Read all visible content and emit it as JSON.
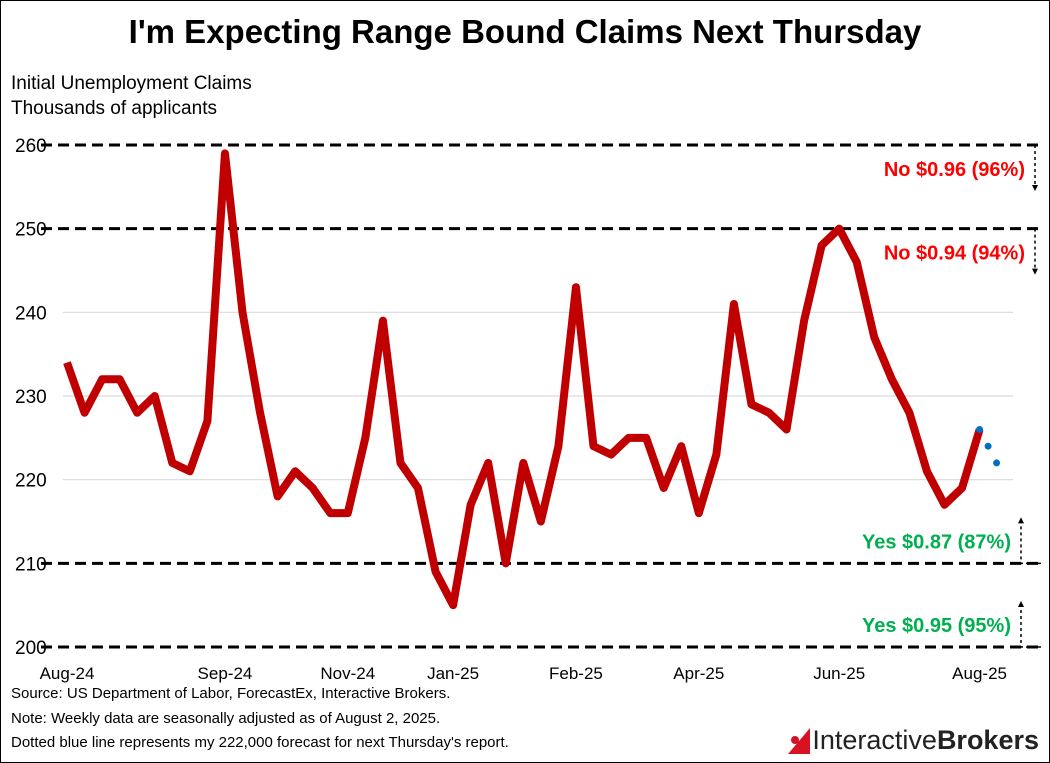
{
  "title": "I'm Expecting Range Bound Claims Next Thursday",
  "subtitle_lines": [
    "Initial Unemployment Claims",
    "Thousands of applicants"
  ],
  "footnotes": [
    "Source: US Department of Labor, ForecastEx, Interactive Brokers.",
    "Note: Weekly data are seasonally adjusted as of August 2, 2025.",
    "Dotted blue line represents my 222,000 forecast for next Thursday's report."
  ],
  "logo": {
    "part1": "Interactive",
    "part2": "Brokers",
    "brand_color": "#d81222"
  },
  "chart_data": {
    "type": "line",
    "title": "I'm Expecting Range Bound Claims Next Thursday",
    "ylabel": "Initial Unemployment Claims, Thousands of applicants",
    "ylim": [
      200,
      260
    ],
    "yticks": [
      "200",
      "210",
      "220",
      "230",
      "240",
      "250",
      "260"
    ],
    "xtick_labels": [
      "Aug-24",
      "Sep-24",
      "Nov-24",
      "Jan-25",
      "Feb-25",
      "Apr-25",
      "Jun-25",
      "Aug-25"
    ],
    "xtick_index": [
      0,
      9,
      16,
      22,
      29,
      36,
      44,
      52
    ],
    "grid": true,
    "series": [
      {
        "color": "#c00000",
        "style": "solid",
        "values": [
          234,
          228,
          232,
          232,
          228,
          230,
          222,
          221,
          227,
          259,
          240,
          228,
          218,
          221,
          219,
          216,
          216,
          225,
          239,
          222,
          219,
          209,
          205,
          217,
          222,
          210,
          222,
          215,
          224,
          243,
          224,
          223,
          225,
          225,
          219,
          224,
          216,
          223,
          241,
          229,
          228,
          226,
          239,
          248,
          250,
          246,
          237,
          232,
          228,
          221,
          217,
          219,
          226
        ]
      },
      {
        "color": "#0070c0",
        "style": "dotted",
        "start_index": 52,
        "values": [
          226,
          224,
          222
        ]
      }
    ],
    "thresholds": [
      {
        "value": 260,
        "label": "No $0.96 (96%)",
        "color": "#ff0000",
        "arrow": "down"
      },
      {
        "value": 250,
        "label": "No $0.94 (94%)",
        "color": "#ff0000",
        "arrow": "down"
      },
      {
        "value": 210,
        "label": "Yes $0.87 (87%)",
        "color": "#00b050",
        "arrow": "up"
      },
      {
        "value": 200,
        "label": "Yes $0.95 (95%)",
        "color": "#00b050",
        "arrow": "up"
      }
    ]
  }
}
